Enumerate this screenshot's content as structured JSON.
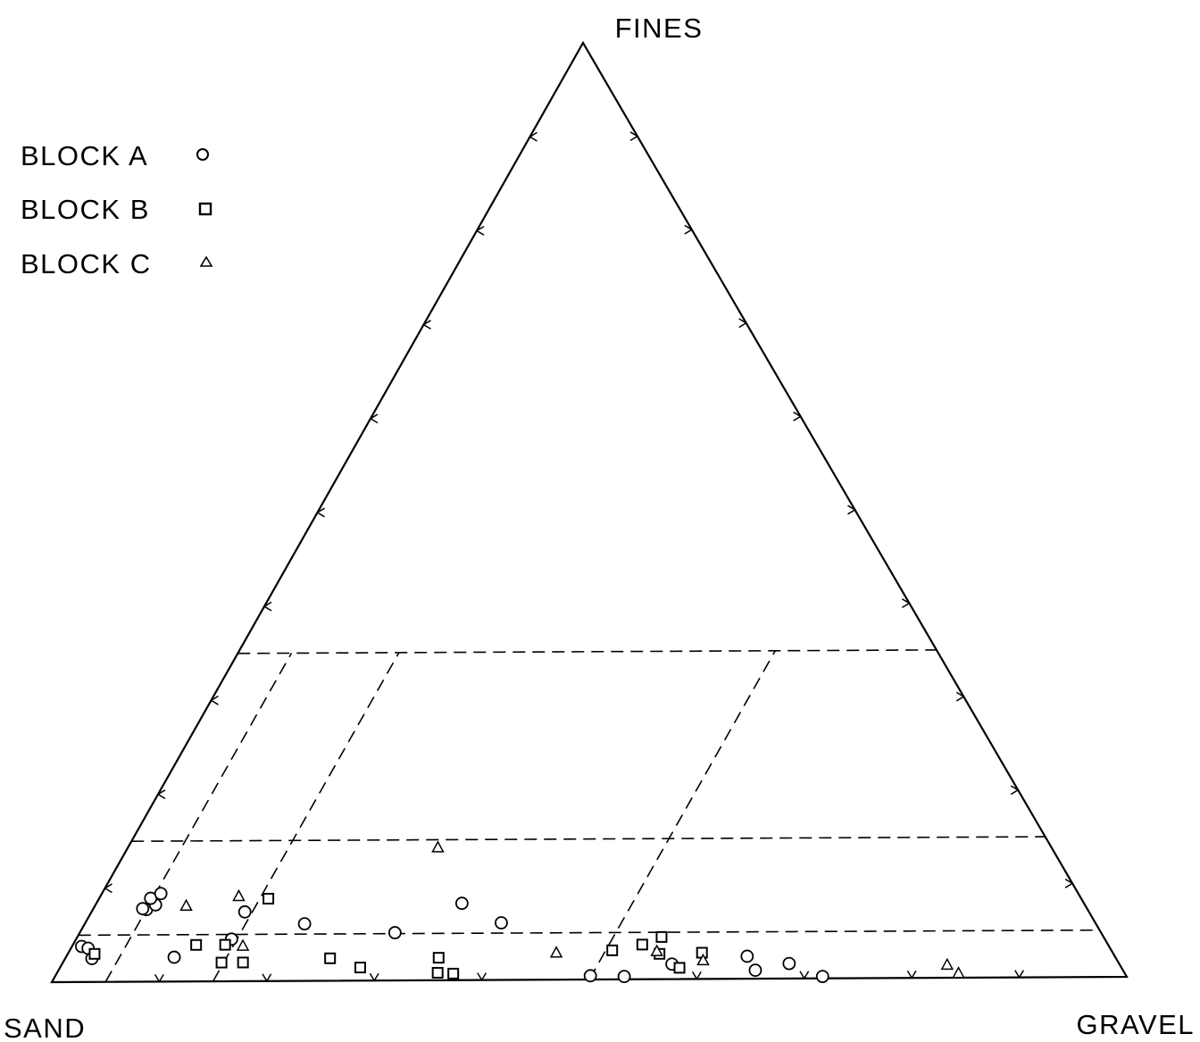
{
  "chart_data": {
    "type": "scatter",
    "subtype": "ternary",
    "title": "",
    "vertices": {
      "top": "FINES",
      "left": "SAND",
      "right": "GRAVEL"
    },
    "legend": {
      "placement": "top-left",
      "entries": [
        {
          "label": "BLOCK A",
          "marker": "circle"
        },
        {
          "label": "BLOCK B",
          "marker": "square"
        },
        {
          "label": "BLOCK C",
          "marker": "triangle"
        }
      ]
    },
    "tick_interval_percent": 10,
    "axis_units": "percent",
    "dashed_lines": {
      "fines_percent": [
        5,
        15,
        35
      ],
      "gravel_percent": [
        5,
        15,
        50
      ]
    },
    "series": [
      {
        "name": "BLOCK A",
        "marker": "circle",
        "points": [
          {
            "sand": 87.3,
            "gravel": 5.0,
            "fines": 7.7
          },
          {
            "sand": 87.6,
            "gravel": 4.6,
            "fines": 7.8
          },
          {
            "sand": 86.2,
            "gravel": 5.6,
            "fines": 8.2
          },
          {
            "sand": 86.3,
            "gravel": 4.8,
            "fines": 8.9
          },
          {
            "sand": 85.1,
            "gravel": 5.5,
            "fines": 9.4
          },
          {
            "sand": 95.3,
            "gravel": 0.9,
            "fines": 3.8
          },
          {
            "sand": 94.8,
            "gravel": 1.6,
            "fines": 3.6
          },
          {
            "sand": 95.0,
            "gravel": 2.5,
            "fines": 2.5
          },
          {
            "sand": 87.3,
            "gravel": 10.1,
            "fines": 2.6
          },
          {
            "sand": 81.0,
            "gravel": 14.5,
            "fines": 4.5
          },
          {
            "sand": 78.3,
            "gravel": 14.3,
            "fines": 7.4
          },
          {
            "sand": 73.4,
            "gravel": 20.5,
            "fines": 6.1
          },
          {
            "sand": 65.5,
            "gravel": 29.4,
            "fines": 5.1
          },
          {
            "sand": 57.7,
            "gravel": 34.1,
            "fines": 8.2
          },
          {
            "sand": 55.1,
            "gravel": 38.8,
            "fines": 6.1
          },
          {
            "sand": 49.7,
            "gravel": 49.9,
            "fines": 0.4
          },
          {
            "sand": 46.6,
            "gravel": 53.1,
            "fines": 0.3
          },
          {
            "sand": 41.5,
            "gravel": 56.9,
            "fines": 1.6
          },
          {
            "sand": 34.1,
            "gravel": 63.5,
            "fines": 2.4
          },
          {
            "sand": 34.1,
            "gravel": 65.0,
            "fines": 0.9
          },
          {
            "sand": 30.6,
            "gravel": 67.8,
            "fines": 1.6
          },
          {
            "sand": 28.2,
            "gravel": 71.6,
            "fines": 0.2
          }
        ]
      },
      {
        "name": "BLOCK B",
        "marker": "square",
        "points": [
          {
            "sand": 94.5,
            "gravel": 2.5,
            "fines": 3.0
          },
          {
            "sand": 84.6,
            "gravel": 11.5,
            "fines": 3.9
          },
          {
            "sand": 81.9,
            "gravel": 14.2,
            "fines": 3.9
          },
          {
            "sand": 83.2,
            "gravel": 14.8,
            "fines": 2.0
          },
          {
            "sand": 81.2,
            "gravel": 16.8,
            "fines": 2.0
          },
          {
            "sand": 75.4,
            "gravel": 15.8,
            "fines": 8.8
          },
          {
            "sand": 72.9,
            "gravel": 24.7,
            "fines": 2.4
          },
          {
            "sand": 70.6,
            "gravel": 28.0,
            "fines": 1.4
          },
          {
            "sand": 62.8,
            "gravel": 34.8,
            "fines": 2.4
          },
          {
            "sand": 63.7,
            "gravel": 35.5,
            "fines": 0.8
          },
          {
            "sand": 62.3,
            "gravel": 37.0,
            "fines": 0.7
          },
          {
            "sand": 46.3,
            "gravel": 50.6,
            "fines": 3.1
          },
          {
            "sand": 43.2,
            "gravel": 53.1,
            "fines": 3.7
          },
          {
            "sand": 41.0,
            "gravel": 54.5,
            "fines": 4.5
          },
          {
            "sand": 42.1,
            "gravel": 55.2,
            "fines": 2.7
          },
          {
            "sand": 41.0,
            "gravel": 57.8,
            "fines": 1.2
          },
          {
            "sand": 38.1,
            "gravel": 59.1,
            "fines": 2.8
          }
        ]
      },
      {
        "name": "BLOCK C",
        "marker": "triangle",
        "points": [
          {
            "sand": 83.4,
            "gravel": 8.5,
            "fines": 8.1
          },
          {
            "sand": 78.0,
            "gravel": 12.9,
            "fines": 9.1
          },
          {
            "sand": 80.3,
            "gravel": 15.9,
            "fines": 3.8
          },
          {
            "sand": 56.9,
            "gravel": 28.9,
            "fines": 14.2
          },
          {
            "sand": 51.6,
            "gravel": 45.5,
            "fines": 2.9
          },
          {
            "sand": 42.2,
            "gravel": 54.8,
            "fines": 3.0
          },
          {
            "sand": 38.4,
            "gravel": 59.6,
            "fines": 2.0
          },
          {
            "sand": 16.0,
            "gravel": 82.6,
            "fines": 1.4
          },
          {
            "sand": 15.4,
            "gravel": 84.1,
            "fines": 0.5
          }
        ]
      }
    ]
  }
}
